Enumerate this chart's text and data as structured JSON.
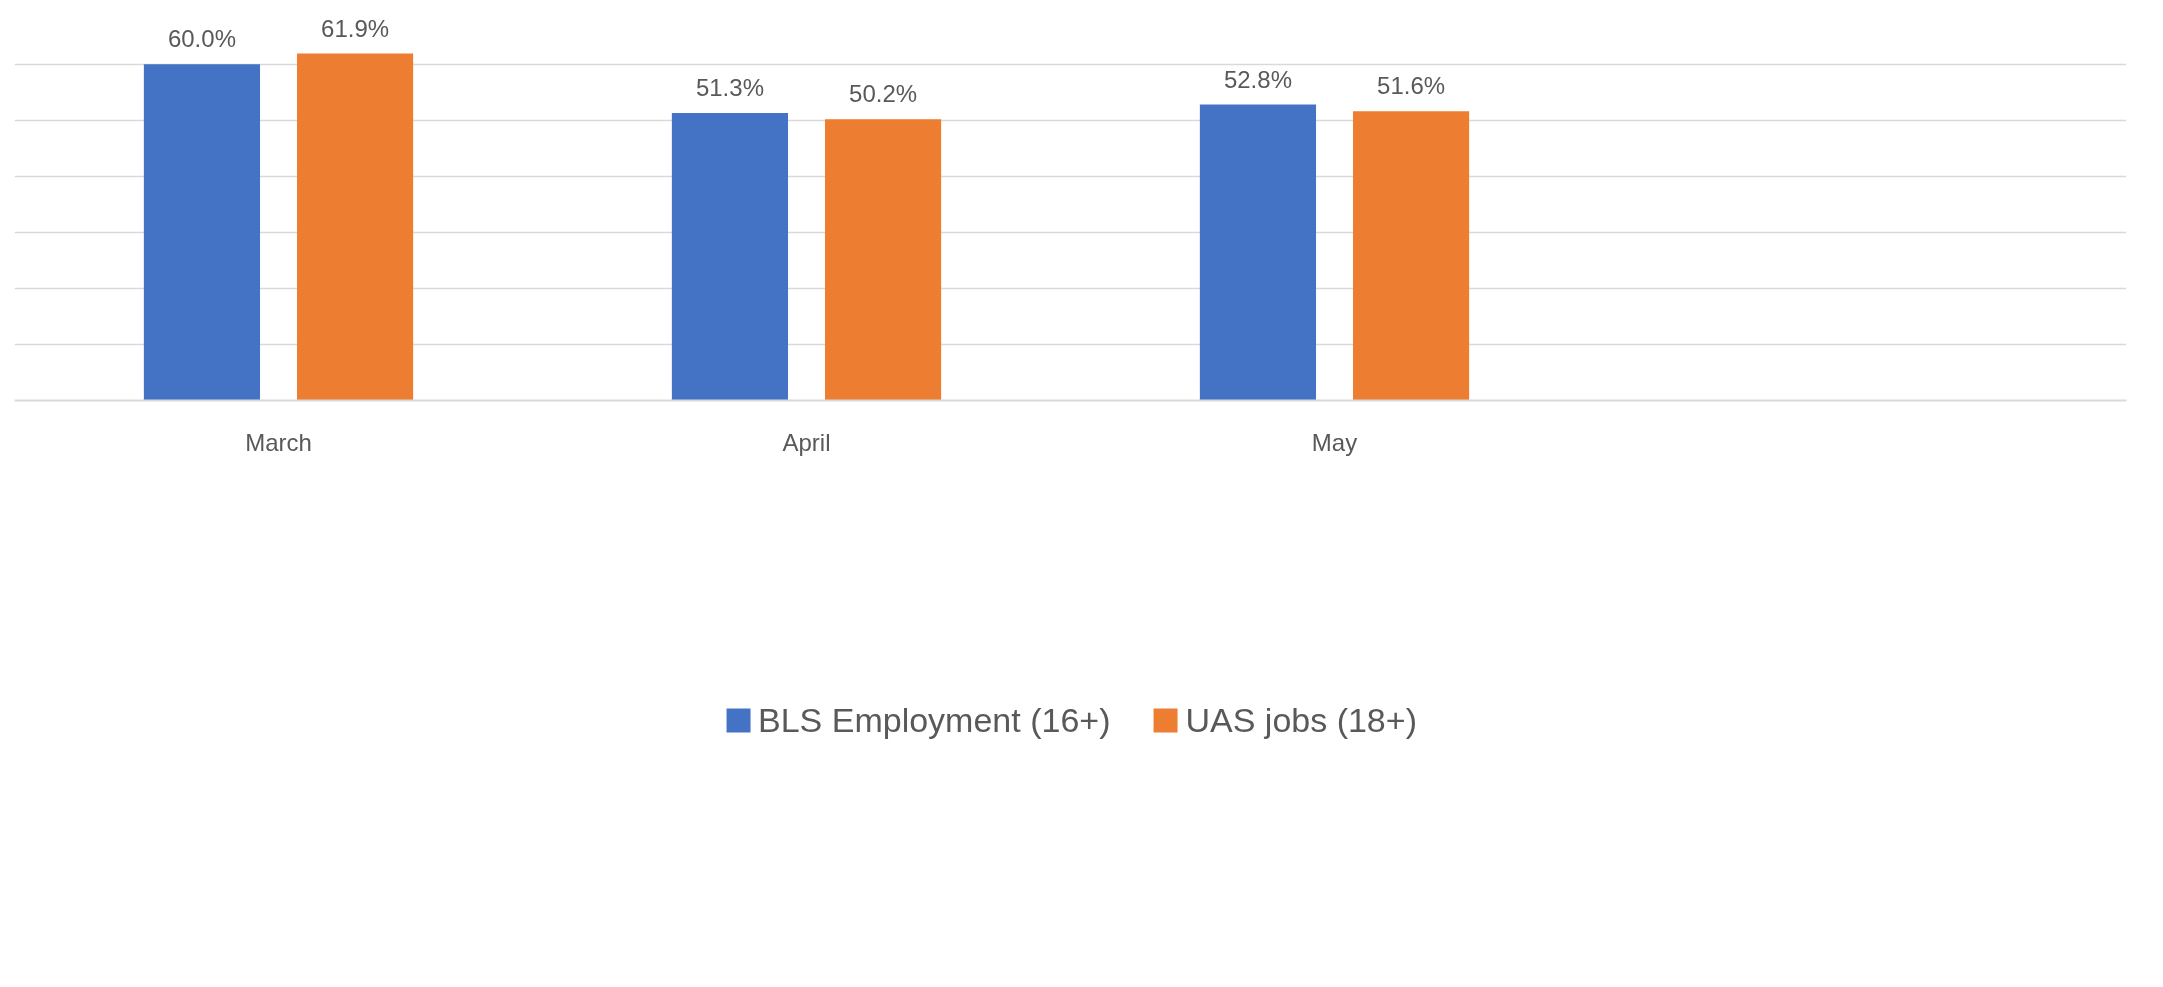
{
  "chart_data": {
    "type": "bar",
    "categories": [
      "March",
      "April",
      "May",
      null
    ],
    "series": [
      {
        "name": "BLS Employment (16+)",
        "color": "#4472c4",
        "values": [
          60.0,
          51.3,
          52.8,
          null
        ],
        "value_labels": [
          "60.0%",
          "51.3%",
          "52.8%",
          null
        ]
      },
      {
        "name": "UAS jobs (18+)",
        "color": "#ed7d31",
        "values": [
          61.9,
          50.2,
          51.6,
          null
        ],
        "value_labels": [
          "61.9%",
          "50.2%",
          "51.6%",
          null
        ]
      }
    ],
    "tick_labels": "x",
    "grid": "y",
    "legend": "bottom"
  }
}
